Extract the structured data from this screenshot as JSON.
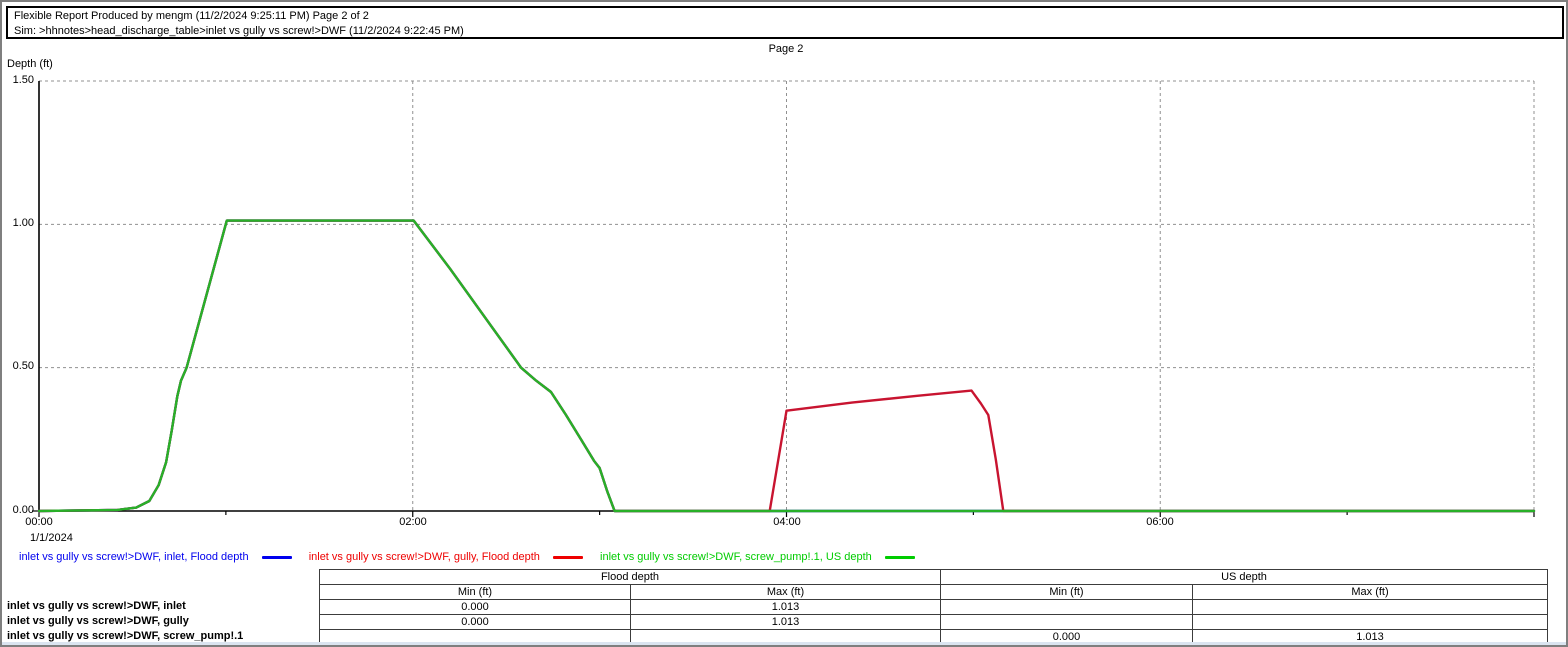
{
  "header": {
    "line1": "Flexible Report Produced by mengm (11/2/2024 9:25:11 PM) Page 2 of 2",
    "line2": "Sim: >hhnotes>head_discharge_table>inlet vs gully vs screw!>DWF (11/2/2024 9:22:45 PM)"
  },
  "page_label": "Page 2",
  "chart_data": {
    "type": "line",
    "title": "Page 2",
    "xlabel": "",
    "ylabel": "Depth (ft)",
    "x_axis": {
      "unit": "hours from 1/1/2024 00:00",
      "range_hours": [
        0,
        8
      ],
      "tick_hours": [
        0,
        2,
        4,
        6
      ],
      "tick_labels": [
        "00:00",
        "02:00",
        "04:00",
        "06:00"
      ],
      "minor_tick_step_hours": 1,
      "date_label": "1/1/2024"
    },
    "y_axis": {
      "range": [
        0,
        1.5
      ],
      "tick_values": [
        0.0,
        0.5,
        1.0,
        1.5
      ],
      "tick_labels": [
        "0.00",
        "0.50",
        "1.00",
        "1.50"
      ],
      "minor_tick_step": 0.1
    },
    "grid": {
      "h_lines": [
        0.5,
        1.0,
        1.5
      ],
      "v_lines_hours": [
        2,
        4,
        6,
        8
      ],
      "style": "dashed-gray"
    },
    "series": [
      {
        "name": "inlet vs gully vs screw!>DWF, inlet, Flood depth",
        "color": "#0000cc",
        "points": [
          [
            0,
            0
          ],
          [
            0.42,
            0.004
          ],
          [
            0.52,
            0.012
          ],
          [
            0.59,
            0.035
          ],
          [
            0.64,
            0.09
          ],
          [
            0.68,
            0.17
          ],
          [
            0.71,
            0.28
          ],
          [
            0.74,
            0.4
          ],
          [
            0.76,
            0.455
          ],
          [
            0.79,
            0.5
          ],
          [
            1.005,
            1.013
          ],
          [
            2.005,
            1.013
          ],
          [
            2.2,
            0.845
          ],
          [
            2.42,
            0.645
          ],
          [
            2.58,
            0.5
          ],
          [
            2.66,
            0.455
          ],
          [
            2.74,
            0.415
          ],
          [
            2.82,
            0.335
          ],
          [
            2.9,
            0.25
          ],
          [
            2.97,
            0.175
          ],
          [
            3.0,
            0.15
          ],
          [
            3.04,
            0.07
          ],
          [
            3.08,
            0
          ],
          [
            8,
            0
          ]
        ]
      },
      {
        "name": "inlet vs gully vs screw!>DWF, gully, Flood depth",
        "color": "#c81430",
        "points": [
          [
            0,
            0
          ],
          [
            0.42,
            0.004
          ],
          [
            0.52,
            0.012
          ],
          [
            0.59,
            0.035
          ],
          [
            0.64,
            0.09
          ],
          [
            0.68,
            0.17
          ],
          [
            0.71,
            0.28
          ],
          [
            0.74,
            0.4
          ],
          [
            0.76,
            0.455
          ],
          [
            0.79,
            0.5
          ],
          [
            1.005,
            1.013
          ],
          [
            2.005,
            1.013
          ],
          [
            2.2,
            0.845
          ],
          [
            2.42,
            0.645
          ],
          [
            2.58,
            0.5
          ],
          [
            2.66,
            0.455
          ],
          [
            2.74,
            0.415
          ],
          [
            2.82,
            0.335
          ],
          [
            2.9,
            0.25
          ],
          [
            2.97,
            0.175
          ],
          [
            3.0,
            0.15
          ],
          [
            3.04,
            0.07
          ],
          [
            3.08,
            0
          ],
          [
            3.91,
            0
          ],
          [
            4.0,
            0.35
          ],
          [
            4.35,
            0.378
          ],
          [
            4.7,
            0.402
          ],
          [
            4.99,
            0.42
          ],
          [
            5.04,
            0.375
          ],
          [
            5.08,
            0.335
          ],
          [
            5.12,
            0.18
          ],
          [
            5.16,
            0
          ],
          [
            8,
            0
          ]
        ]
      },
      {
        "name": "inlet vs gully vs screw!>DWF, screw_pump!.1, US depth",
        "color": "#28b028",
        "points": [
          [
            0,
            0
          ],
          [
            0.42,
            0.004
          ],
          [
            0.52,
            0.012
          ],
          [
            0.59,
            0.035
          ],
          [
            0.64,
            0.09
          ],
          [
            0.68,
            0.17
          ],
          [
            0.71,
            0.28
          ],
          [
            0.74,
            0.4
          ],
          [
            0.76,
            0.455
          ],
          [
            0.79,
            0.5
          ],
          [
            1.005,
            1.013
          ],
          [
            2.005,
            1.013
          ],
          [
            2.2,
            0.845
          ],
          [
            2.42,
            0.645
          ],
          [
            2.58,
            0.5
          ],
          [
            2.66,
            0.455
          ],
          [
            2.74,
            0.415
          ],
          [
            2.82,
            0.335
          ],
          [
            2.9,
            0.25
          ],
          [
            2.97,
            0.175
          ],
          [
            3.0,
            0.15
          ],
          [
            3.04,
            0.07
          ],
          [
            3.08,
            0
          ],
          [
            8,
            0
          ]
        ]
      }
    ]
  },
  "legend": {
    "items": [
      {
        "label": "inlet vs gully vs screw!>DWF, inlet, Flood depth",
        "color": "#0000ee"
      },
      {
        "label": "inlet vs gully vs screw!>DWF, gully, Flood depth",
        "color": "#ee0000"
      },
      {
        "label": "inlet vs gully vs screw!>DWF, screw_pump!.1, US depth",
        "color": "#00cc00"
      }
    ]
  },
  "table": {
    "group_headers": [
      "Flood depth",
      "US depth"
    ],
    "sub_headers": [
      "Min (ft)",
      "Max (ft)",
      "Min (ft)",
      "Max (ft)"
    ],
    "rows": [
      {
        "label": "inlet vs gully vs screw!>DWF, inlet",
        "cells": [
          "0.000",
          "1.013",
          "",
          ""
        ]
      },
      {
        "label": "inlet vs gully vs screw!>DWF, gully",
        "cells": [
          "0.000",
          "1.013",
          "",
          ""
        ]
      },
      {
        "label": "inlet vs gully vs screw!>DWF, screw_pump!.1",
        "cells": [
          "",
          "",
          "0.000",
          "1.013"
        ]
      }
    ]
  }
}
